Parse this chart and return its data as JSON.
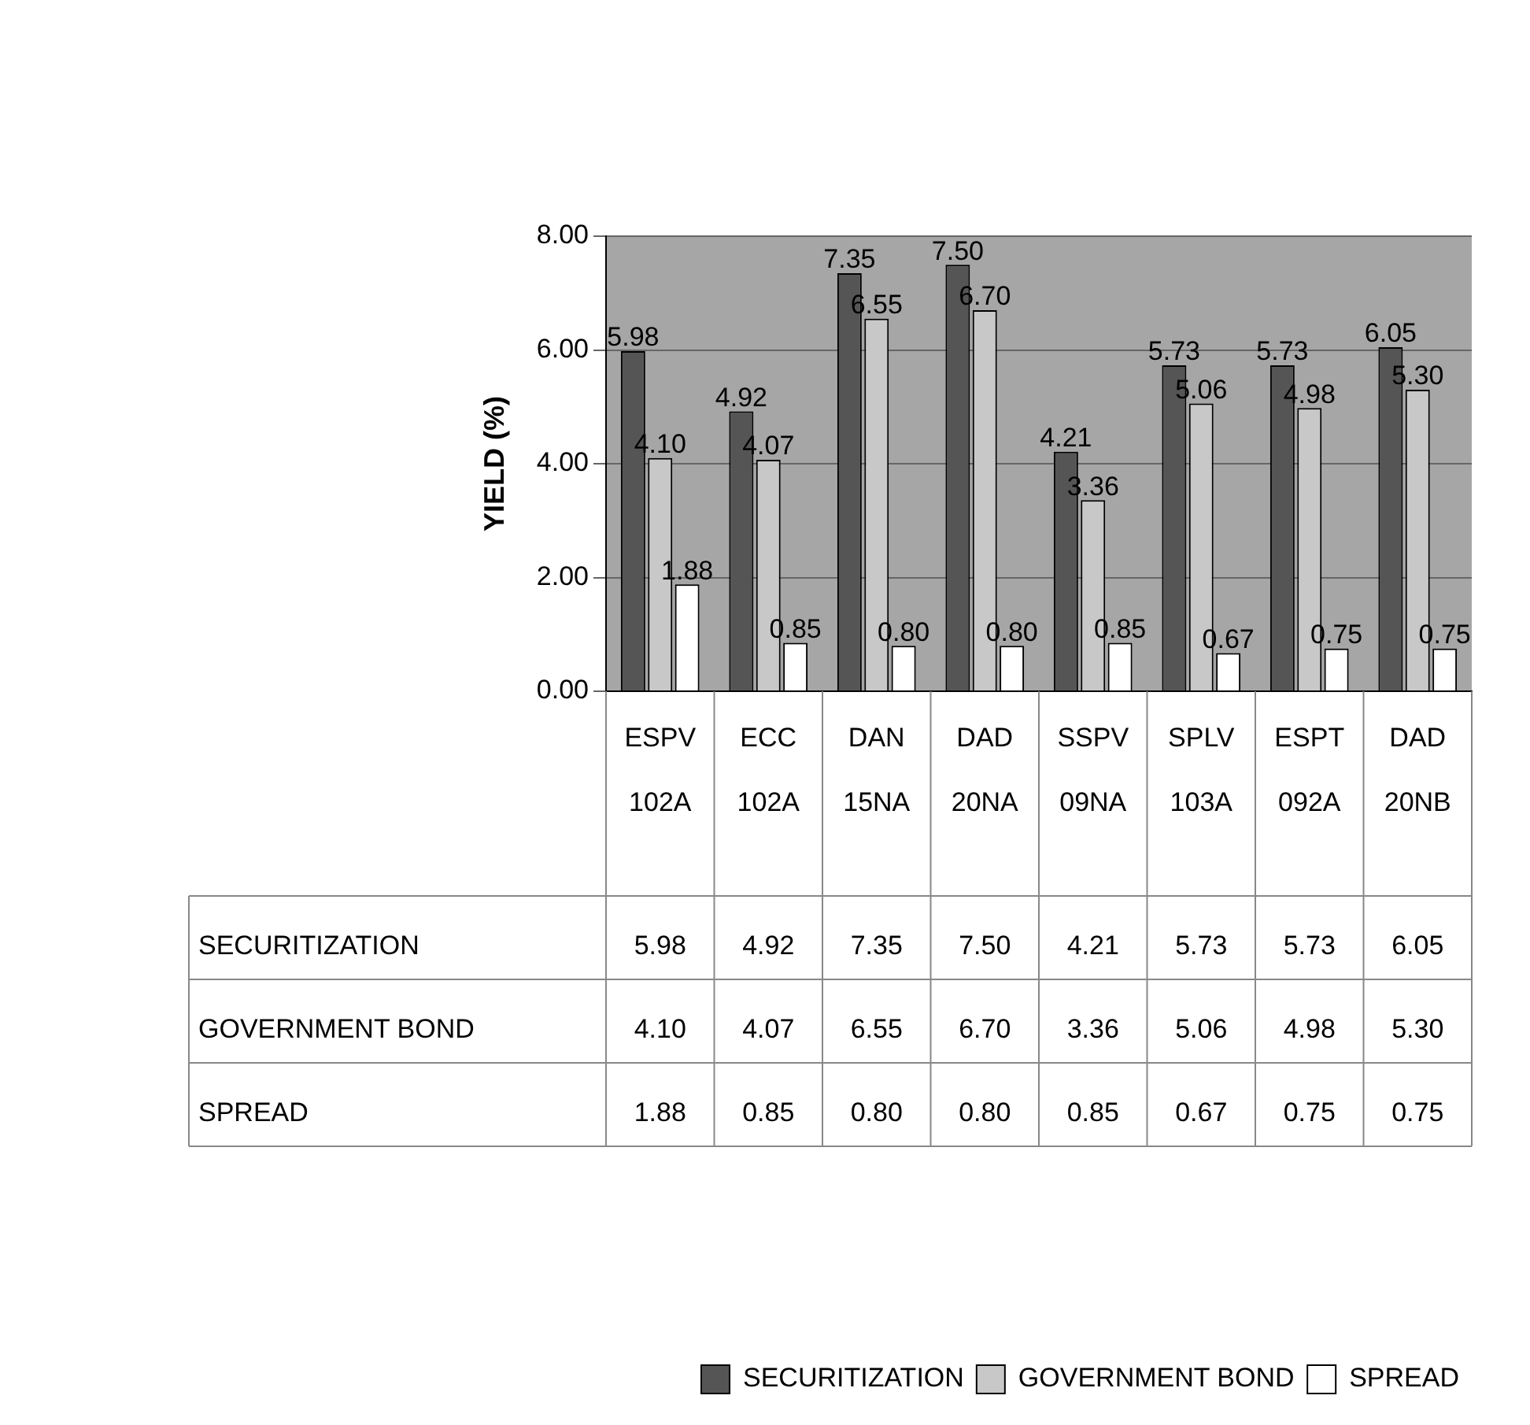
{
  "chart_data": {
    "type": "bar",
    "ylabel": "YIELD (%)",
    "categories": [
      "ESPV 102A",
      "ECC 102A",
      "DAN 15NA",
      "DAD 20NA",
      "SSPV 09NA",
      "SPLV 103A",
      "ESPT 092A",
      "DAD 20NB"
    ],
    "series": [
      {
        "name": "SECURITIZATION",
        "color": "#555555",
        "values": [
          5.98,
          4.92,
          7.35,
          7.5,
          4.21,
          5.73,
          5.73,
          6.05
        ],
        "value_labels": [
          "5.98",
          "4.92",
          "7.35",
          "7.50",
          "4.21",
          "5.73",
          "5.73",
          "6.05"
        ]
      },
      {
        "name": "GOVERNMENT BOND",
        "color": "#c8c8c8",
        "values": [
          4.1,
          4.07,
          6.55,
          6.7,
          3.36,
          5.06,
          4.98,
          5.3
        ],
        "value_labels": [
          "4.10",
          "4.07",
          "6.55",
          "6.70",
          "3.36",
          "5.06",
          "4.98",
          "5.30"
        ]
      },
      {
        "name": "SPREAD",
        "color": "#ffffff",
        "values": [
          1.88,
          0.85,
          0.8,
          0.8,
          0.85,
          0.67,
          0.75,
          0.75
        ],
        "value_labels": [
          "1.88",
          "0.85",
          "0.80",
          "0.80",
          "0.85",
          "0.67",
          "0.75",
          "0.75"
        ]
      }
    ],
    "ylim": [
      0,
      8
    ],
    "yticks": [
      {
        "value": 0,
        "label": "0.00"
      },
      {
        "value": 2,
        "label": "2.00"
      },
      {
        "value": 4,
        "label": "4.00"
      },
      {
        "value": 6,
        "label": "6.00"
      },
      {
        "value": 8,
        "label": "8.00"
      }
    ],
    "grid": "y",
    "legend": "bottom right"
  }
}
